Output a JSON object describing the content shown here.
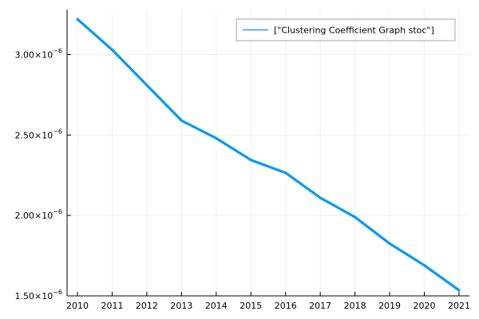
{
  "chart_data": {
    "type": "line",
    "title": "",
    "xlabel": "",
    "ylabel": "",
    "x": [
      2010,
      2011,
      2012,
      2013,
      2014,
      2015,
      2016,
      2017,
      2018,
      2019,
      2020,
      2021
    ],
    "series": [
      {
        "name": "[\"Clustering Coefficient Graph stoc\"]",
        "color": "#009af9",
        "values": [
          3.22e-06,
          3.03e-06,
          2.81e-06,
          2.59e-06,
          2.48e-06,
          2.345e-06,
          2.265e-06,
          2.11e-06,
          1.99e-06,
          1.825e-06,
          1.69e-06,
          1.535e-06
        ]
      }
    ],
    "xlim": [
      2009.7,
      2021.3
    ],
    "ylim": [
      1.5e-06,
      3.28e-06
    ],
    "x_ticks": [
      "2010",
      "2011",
      "2012",
      "2013",
      "2014",
      "2015",
      "2016",
      "2017",
      "2018",
      "2019",
      "2020",
      "2021"
    ],
    "y_ticks": [
      {
        "value": 1.5e-06,
        "mantissa": "1.50",
        "times": "×10",
        "exponent": "−6"
      },
      {
        "value": 2e-06,
        "mantissa": "2.00",
        "times": "×10",
        "exponent": "−6"
      },
      {
        "value": 2.5e-06,
        "mantissa": "2.50",
        "times": "×10",
        "exponent": "−6"
      },
      {
        "value": 3e-06,
        "mantissa": "3.00",
        "times": "×10",
        "exponent": "−6"
      }
    ],
    "grid": true,
    "legend_position": "top-right"
  }
}
